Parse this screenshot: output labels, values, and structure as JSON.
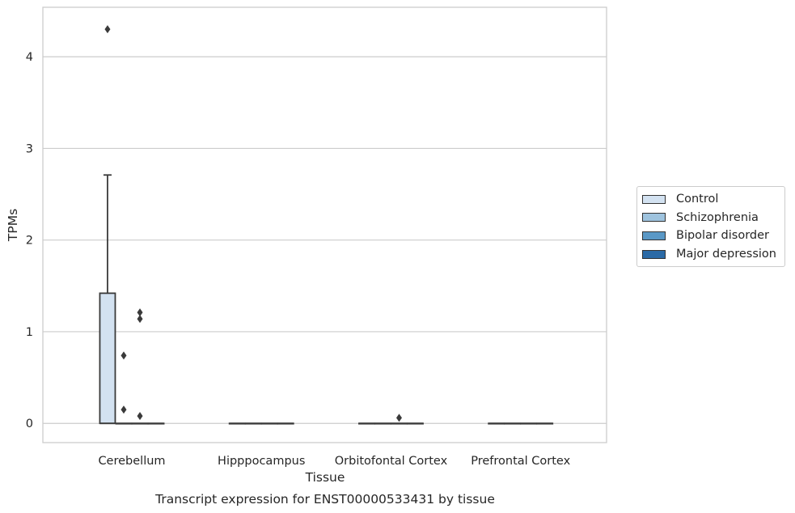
{
  "chart_data": {
    "type": "box",
    "title": "Transcript expression for ENST00000533431 by tissue",
    "xlabel": "Tissue",
    "ylabel": "TPMs",
    "ylim": [
      -0.21,
      4.54
    ],
    "yticks": [
      0,
      1,
      2,
      3,
      4
    ],
    "grid": "horizontal",
    "legend_position": "right",
    "categories": [
      "Cerebellum",
      "Hipppocampus",
      "Orbitofontal Cortex",
      "Prefrontal Cortex"
    ],
    "series": [
      {
        "name": "Control",
        "color": "#d3e2f1",
        "boxes": [
          {
            "q1": 0,
            "median": 0,
            "q3": 1.42,
            "whisker_low": 0,
            "whisker_high": 2.71,
            "outliers": [
              4.3
            ]
          },
          {
            "q1": 0,
            "median": 0,
            "q3": 0,
            "whisker_low": 0,
            "whisker_high": 0,
            "outliers": []
          },
          {
            "q1": 0,
            "median": 0,
            "q3": 0,
            "whisker_low": 0,
            "whisker_high": 0,
            "outliers": []
          },
          {
            "q1": 0,
            "median": 0,
            "q3": 0,
            "whisker_low": 0,
            "whisker_high": 0,
            "outliers": []
          }
        ]
      },
      {
        "name": "Schizophrenia",
        "color": "#9ec3de",
        "boxes": [
          {
            "q1": 0,
            "median": 0,
            "q3": 0,
            "whisker_low": 0,
            "whisker_high": 0,
            "outliers": [
              0.74,
              0.15
            ]
          },
          {
            "q1": 0,
            "median": 0,
            "q3": 0,
            "whisker_low": 0,
            "whisker_high": 0,
            "outliers": []
          },
          {
            "q1": 0,
            "median": 0,
            "q3": 0,
            "whisker_low": 0,
            "whisker_high": 0,
            "outliers": []
          },
          {
            "q1": 0,
            "median": 0,
            "q3": 0,
            "whisker_low": 0,
            "whisker_high": 0,
            "outliers": []
          }
        ]
      },
      {
        "name": "Bipolar disorder",
        "color": "#5a98c6",
        "boxes": [
          {
            "q1": 0,
            "median": 0,
            "q3": 0,
            "whisker_low": 0,
            "whisker_high": 0,
            "outliers": [
              1.21,
              1.14,
              0.08
            ]
          },
          {
            "q1": 0,
            "median": 0,
            "q3": 0,
            "whisker_low": 0,
            "whisker_high": 0,
            "outliers": []
          },
          {
            "q1": 0,
            "median": 0,
            "q3": 0,
            "whisker_low": 0,
            "whisker_high": 0,
            "outliers": [
              0.06
            ]
          },
          {
            "q1": 0,
            "median": 0,
            "q3": 0,
            "whisker_low": 0,
            "whisker_high": 0,
            "outliers": []
          }
        ]
      },
      {
        "name": "Major depression",
        "color": "#2b6aa6",
        "boxes": [
          {
            "q1": 0,
            "median": 0,
            "q3": 0,
            "whisker_low": 0,
            "whisker_high": 0,
            "outliers": []
          },
          {
            "q1": 0,
            "median": 0,
            "q3": 0,
            "whisker_low": 0,
            "whisker_high": 0,
            "outliers": []
          },
          {
            "q1": 0,
            "median": 0,
            "q3": 0,
            "whisker_low": 0,
            "whisker_high": 0,
            "outliers": []
          },
          {
            "q1": 0,
            "median": 0,
            "q3": 0,
            "whisker_low": 0,
            "whisker_high": 0,
            "outliers": []
          }
        ]
      }
    ]
  }
}
